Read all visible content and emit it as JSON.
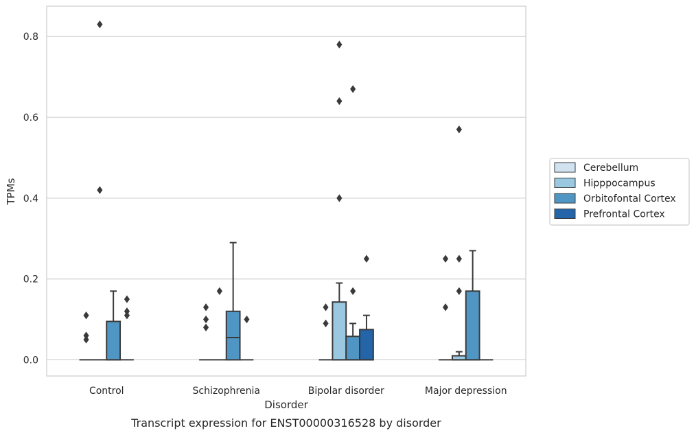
{
  "chart_data": {
    "type": "box",
    "caption": "Transcript expression for ENST00000316528 by disorder",
    "xlabel": "Disorder",
    "ylabel": "TPMs",
    "ylim": [
      -0.04,
      0.875
    ],
    "yticks": [
      0.0,
      0.2,
      0.4,
      0.6,
      0.8
    ],
    "ytick_labels": [
      "0.0",
      "0.2",
      "0.4",
      "0.6",
      "0.8"
    ],
    "grid": "horizontal",
    "legend_position": "right",
    "categories": [
      "Control",
      "Schizophrenia",
      "Bipolar disorder",
      "Major depression"
    ],
    "series": [
      {
        "name": "Cerebellum",
        "color": "#d1e2f1",
        "boxes": [
          {
            "q1": 0,
            "median": 0,
            "q3": 0,
            "whisker_low": 0,
            "whisker_high": 0,
            "outliers": [
              0.05,
              0.06,
              0.11
            ]
          },
          {
            "q1": 0,
            "median": 0,
            "q3": 0,
            "whisker_low": 0,
            "whisker_high": 0,
            "outliers": [
              0.08,
              0.1,
              0.13
            ]
          },
          {
            "q1": 0,
            "median": 0,
            "q3": 0,
            "whisker_low": 0,
            "whisker_high": 0,
            "outliers": [
              0.09,
              0.13
            ]
          },
          {
            "q1": 0,
            "median": 0,
            "q3": 0,
            "whisker_low": 0,
            "whisker_high": 0,
            "outliers": [
              0.13,
              0.25
            ]
          }
        ]
      },
      {
        "name": "Hipppocampus",
        "color": "#9ac8e0",
        "boxes": [
          {
            "q1": 0,
            "median": 0,
            "q3": 0,
            "whisker_low": 0,
            "whisker_high": 0,
            "outliers": [
              0.42,
              0.83
            ]
          },
          {
            "q1": 0,
            "median": 0,
            "q3": 0,
            "whisker_low": 0,
            "whisker_high": 0,
            "outliers": [
              0.17
            ]
          },
          {
            "q1": 0,
            "median": 0,
            "q3": 0.143,
            "whisker_low": 0,
            "whisker_high": 0.19,
            "outliers": [
              0.4,
              0.64,
              0.78
            ]
          },
          {
            "q1": 0,
            "median": 0,
            "q3": 0.01,
            "whisker_low": 0,
            "whisker_high": 0.02,
            "outliers": [
              0.17,
              0.25,
              0.57
            ]
          }
        ]
      },
      {
        "name": "Orbitofontal Cortex",
        "color": "#5096c5",
        "boxes": [
          {
            "q1": 0,
            "median": 0,
            "q3": 0.095,
            "whisker_low": 0,
            "whisker_high": 0.17,
            "outliers": []
          },
          {
            "q1": 0,
            "median": 0.055,
            "q3": 0.12,
            "whisker_low": 0,
            "whisker_high": 0.29,
            "outliers": []
          },
          {
            "q1": 0,
            "median": 0,
            "q3": 0.058,
            "whisker_low": 0,
            "whisker_high": 0.09,
            "outliers": [
              0.17,
              0.67
            ]
          },
          {
            "q1": 0,
            "median": 0,
            "q3": 0.17,
            "whisker_low": 0,
            "whisker_high": 0.27,
            "outliers": []
          }
        ]
      },
      {
        "name": "Prefrontal Cortex",
        "color": "#2464a8",
        "boxes": [
          {
            "q1": 0,
            "median": 0,
            "q3": 0,
            "whisker_low": 0,
            "whisker_high": 0,
            "outliers": [
              0.11,
              0.12,
              0.15
            ]
          },
          {
            "q1": 0,
            "median": 0,
            "q3": 0,
            "whisker_low": 0,
            "whisker_high": 0,
            "outliers": [
              0.1
            ]
          },
          {
            "q1": 0,
            "median": 0,
            "q3": 0.075,
            "whisker_low": 0,
            "whisker_high": 0.11,
            "outliers": [
              0.25
            ]
          },
          {
            "q1": 0,
            "median": 0,
            "q3": 0,
            "whisker_low": 0,
            "whisker_high": 0,
            "outliers": []
          }
        ]
      }
    ]
  }
}
